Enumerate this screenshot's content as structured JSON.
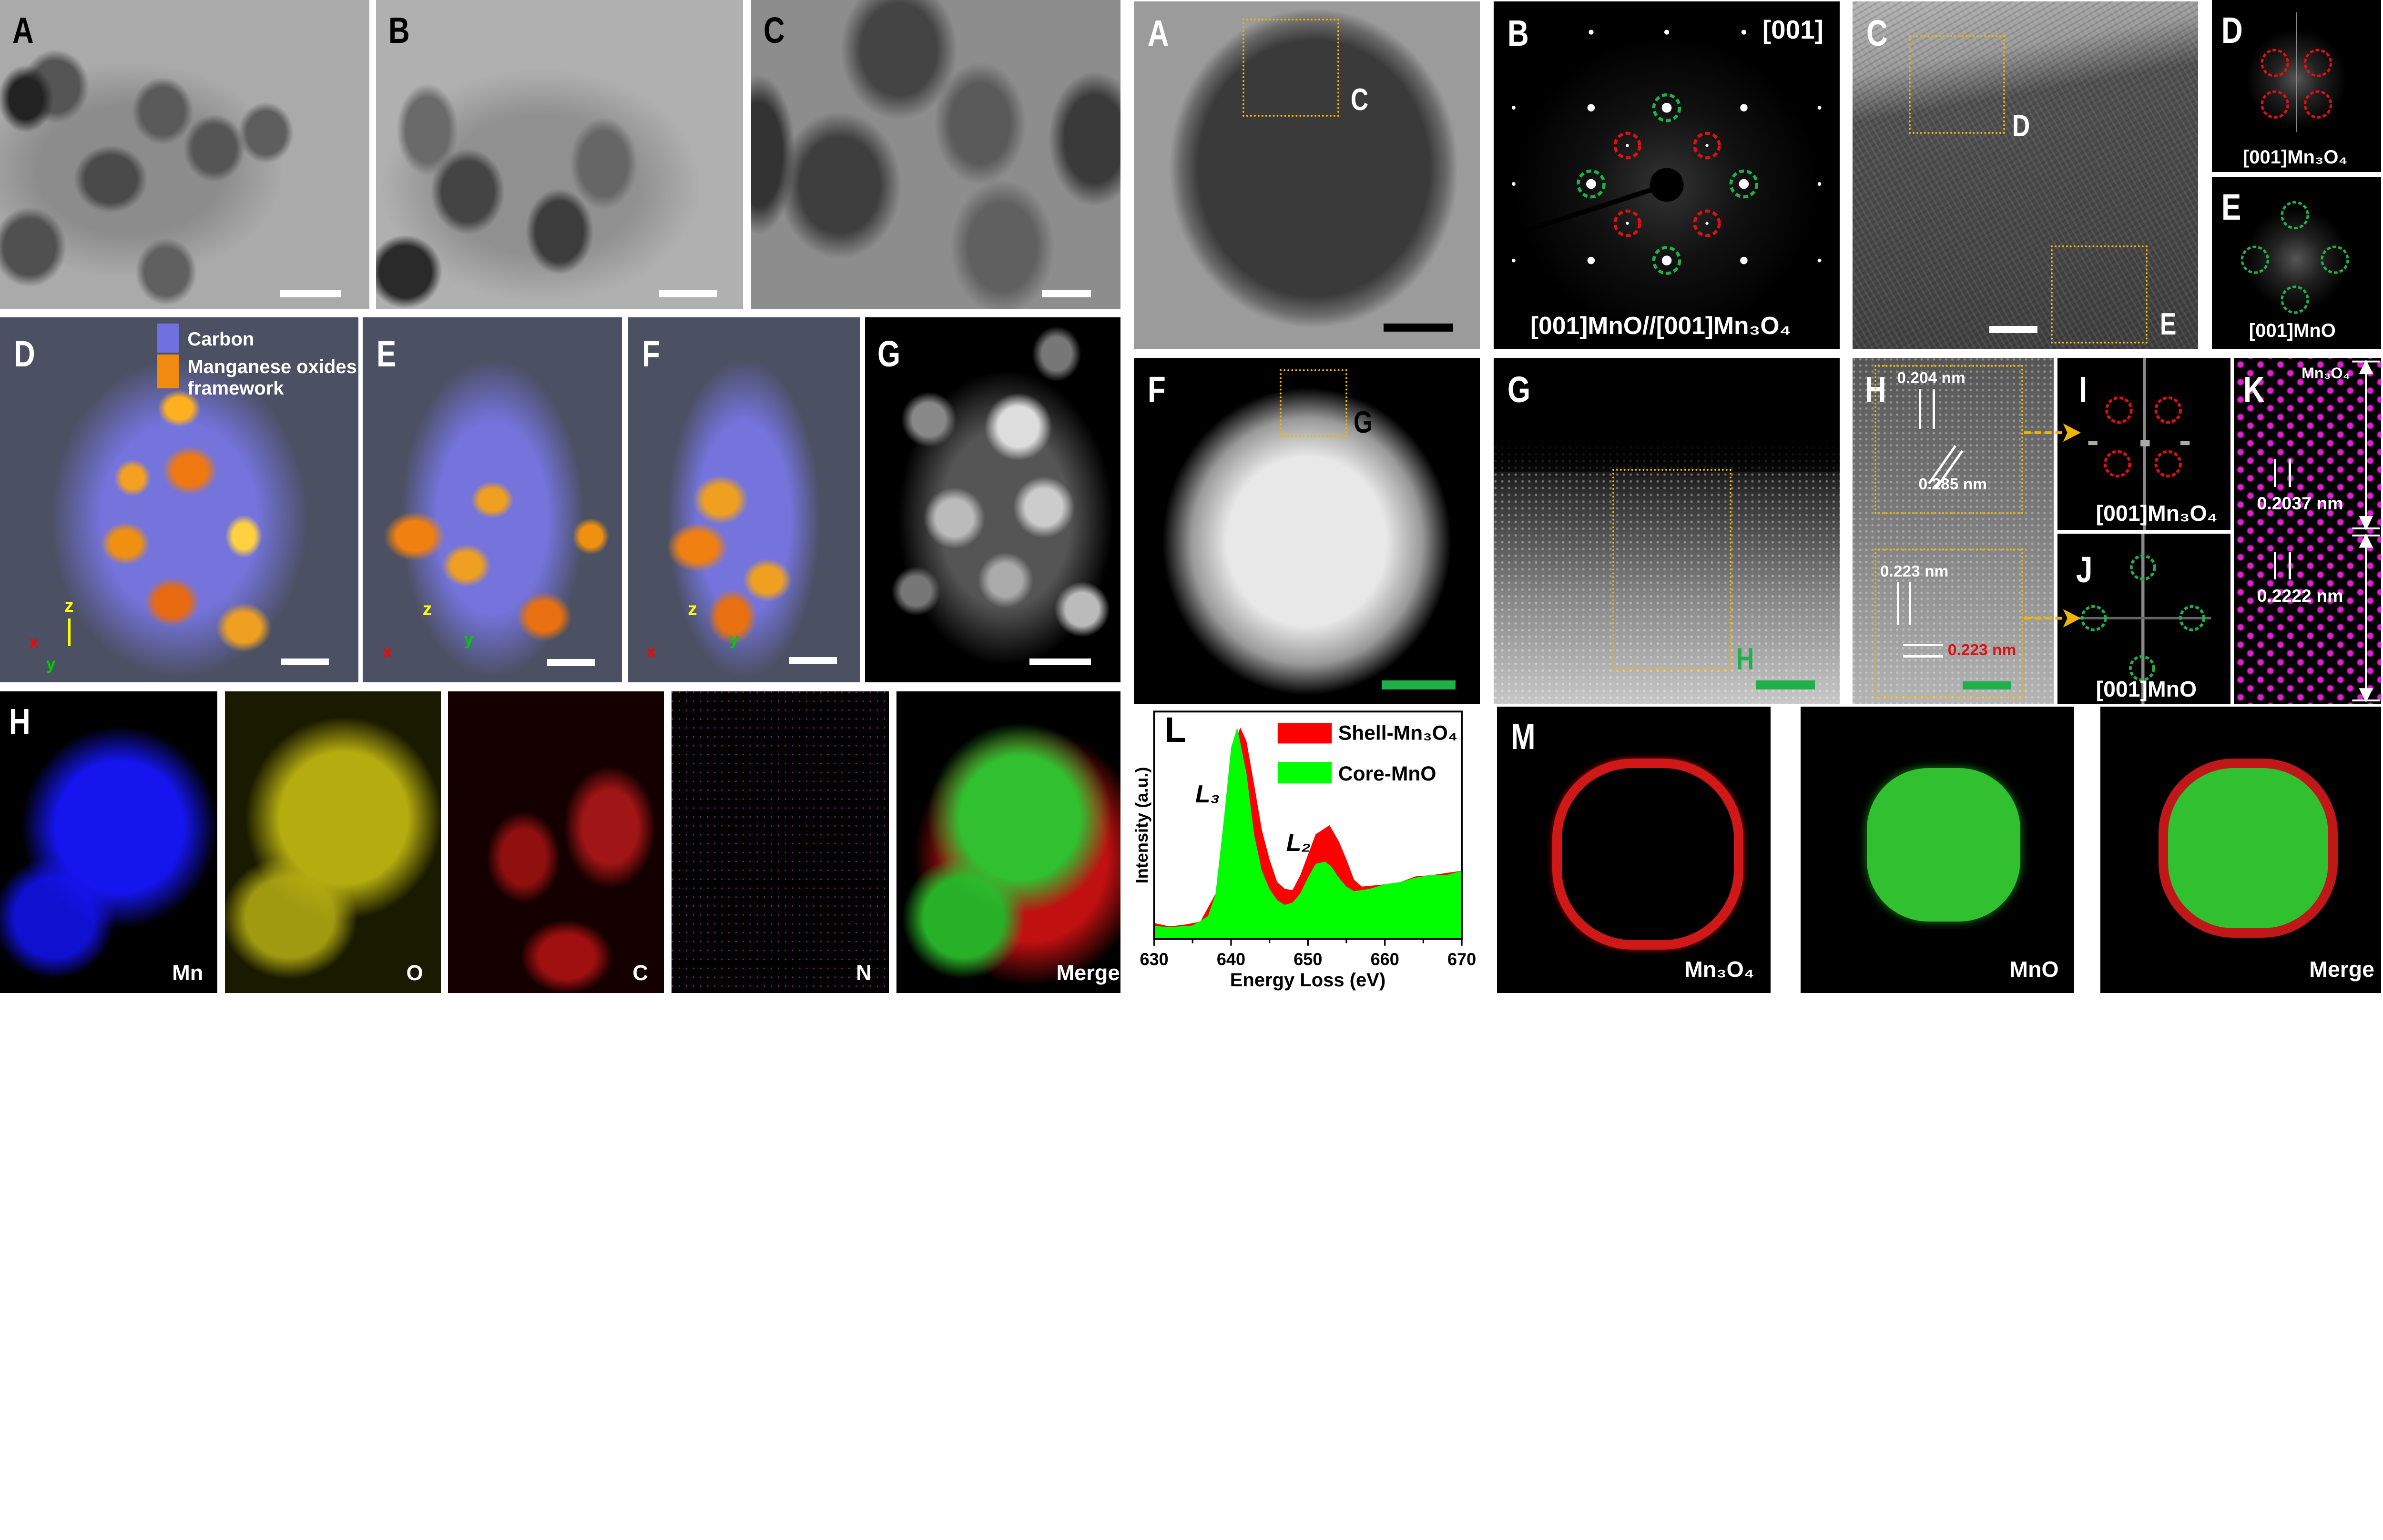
{
  "left": {
    "row1": [
      {
        "label": "A"
      },
      {
        "label": "B"
      },
      {
        "label": "C"
      }
    ],
    "row2": [
      {
        "label": "D"
      },
      {
        "label": "E"
      },
      {
        "label": "F"
      },
      {
        "label": "G"
      }
    ],
    "legend": {
      "carbon": "Carbon",
      "manganese_line1": "Manganese oxides",
      "manganese_line2": "framework",
      "carbon_color": "#7070e0",
      "manganese_color": "#f08a10"
    },
    "axes": {
      "x": "x",
      "y": "y",
      "z": "z"
    },
    "maps": {
      "label": "H",
      "items": [
        "Mn",
        "O",
        "C",
        "N",
        "Merge"
      ]
    }
  },
  "right": {
    "A": {
      "label": "A",
      "marker": "C"
    },
    "B": {
      "label": "B",
      "zone": "[001]",
      "caption": "[001]MnO//[001]Mn₃O₄"
    },
    "C": {
      "label": "C",
      "marker_d": "D",
      "marker_e": "E"
    },
    "D": {
      "label": "D",
      "caption": "[001]Mn₃O₄"
    },
    "E": {
      "label": "E",
      "caption": "[001]MnO"
    },
    "F": {
      "label": "F",
      "marker": "G"
    },
    "G": {
      "label": "G",
      "marker": "H"
    },
    "H": {
      "label": "H",
      "d1": "0.204 nm",
      "d2": "0.285 nm",
      "d3": "0.223 nm",
      "d4": "0.223 nm"
    },
    "I": {
      "label": "I",
      "caption": "[001]Mn₃O₄"
    },
    "J": {
      "label": "J",
      "caption": "[001]MnO"
    },
    "K": {
      "label": "K",
      "phase": "Mn₃O₄",
      "d1": "0.2037 nm",
      "d2": "0.2222 nm"
    },
    "M": {
      "label": "M",
      "items": [
        "Mn₃O₄",
        "MnO",
        "Merge"
      ]
    }
  },
  "chart_data": {
    "type": "area",
    "panel_label": "L",
    "xlabel": "Energy Loss (eV)",
    "ylabel": "Intensity (a.u.)",
    "xlim": [
      630,
      670
    ],
    "ylim": [
      0,
      1
    ],
    "xticks": [
      "630",
      "640",
      "650",
      "660",
      "670"
    ],
    "annotations": [
      "L₃",
      "L₂"
    ],
    "legend_position": "top-right",
    "series": [
      {
        "name": "Shell-Mn₃O₄",
        "color": "#ff0000",
        "x": [
          630,
          632,
          634,
          636,
          638,
          639,
          640,
          641.2,
          642,
          643,
          644,
          645,
          646,
          647,
          648,
          649,
          650,
          651,
          652.8,
          654,
          655,
          656,
          657,
          660,
          662,
          664,
          666,
          668,
          670
        ],
        "y": [
          0.07,
          0.055,
          0.063,
          0.076,
          0.2,
          0.5,
          0.82,
          0.93,
          0.87,
          0.68,
          0.48,
          0.35,
          0.25,
          0.22,
          0.215,
          0.28,
          0.37,
          0.46,
          0.5,
          0.43,
          0.35,
          0.26,
          0.23,
          0.24,
          0.25,
          0.275,
          0.28,
          0.29,
          0.3
        ]
      },
      {
        "name": "Core-MnO",
        "color": "#00ff00",
        "x": [
          630,
          632,
          635,
          637,
          638,
          639,
          640,
          640.8,
          642,
          643,
          644,
          645,
          646,
          647,
          648,
          649,
          650,
          651,
          652.2,
          653,
          654,
          655,
          656,
          658,
          660,
          662,
          664,
          666,
          668,
          670
        ],
        "y": [
          0.057,
          0.052,
          0.059,
          0.1,
          0.2,
          0.5,
          0.84,
          0.93,
          0.73,
          0.46,
          0.3,
          0.22,
          0.17,
          0.15,
          0.16,
          0.2,
          0.27,
          0.33,
          0.34,
          0.32,
          0.27,
          0.23,
          0.21,
          0.22,
          0.24,
          0.25,
          0.27,
          0.28,
          0.28,
          0.3
        ]
      }
    ]
  }
}
